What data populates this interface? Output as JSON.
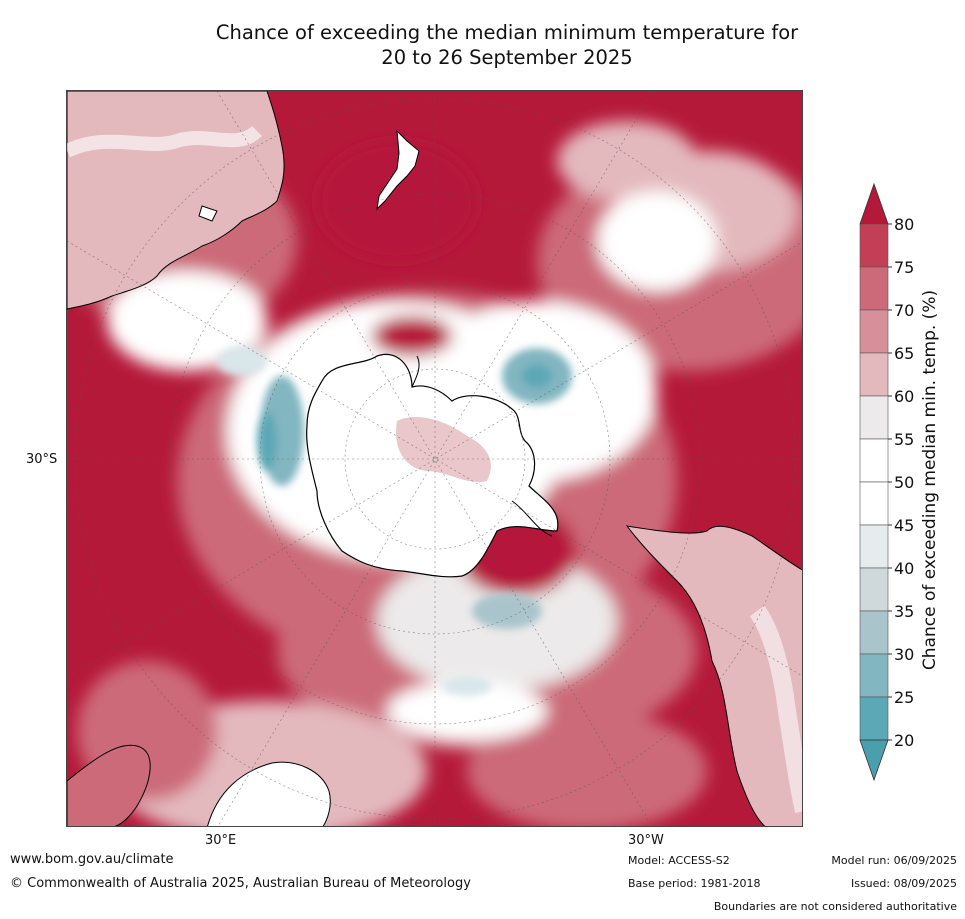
{
  "title": {
    "line1": "Chance of exceeding the median minimum temperature for",
    "line2": "20 to 26 September 2025"
  },
  "axis_labels": {
    "lat_30s": "30°S",
    "lon_30e": "30°E",
    "lon_30w": "30°W"
  },
  "colorbar": {
    "title": "Chance of exceeding median min. temp. (%)",
    "ticks": [
      "80",
      "75",
      "70",
      "65",
      "60",
      "55",
      "50",
      "45",
      "40",
      "35",
      "30",
      "25",
      "20"
    ],
    "colors": [
      "#b5193a",
      "#c23f55",
      "#cc6a79",
      "#d78f99",
      "#e3b9be",
      "#eceaea",
      "#ffffff",
      "#ffffff",
      "#e6ecee",
      "#cfd8da",
      "#a9c5cb",
      "#82b6c1",
      "#5da8b6"
    ],
    "top_arrow_color": "#b5193a",
    "bottom_arrow_color": "#4a9fae"
  },
  "map": {
    "projection": "south-polar-stereographic",
    "palette": {
      "high": "#b5193a",
      "mid_high": "#cc6a79",
      "light_red": "#e3b9be",
      "neutral": "#ffffff",
      "light_blue": "#d9e6ea",
      "blue": "#5da8b6",
      "coast": "#000000"
    }
  },
  "footer": {
    "website": "www.bom.gov.au/climate",
    "copyright": "© Commonwealth of Australia 2025, Australian Bureau of Meteorology",
    "model": "Model: ACCESS-S2",
    "base_period": "Base period: 1981-2018",
    "model_run": "Model run: 06/09/2025",
    "issued": "Issued: 08/09/2025",
    "disclaimer": "Boundaries are not considered authoritative"
  }
}
